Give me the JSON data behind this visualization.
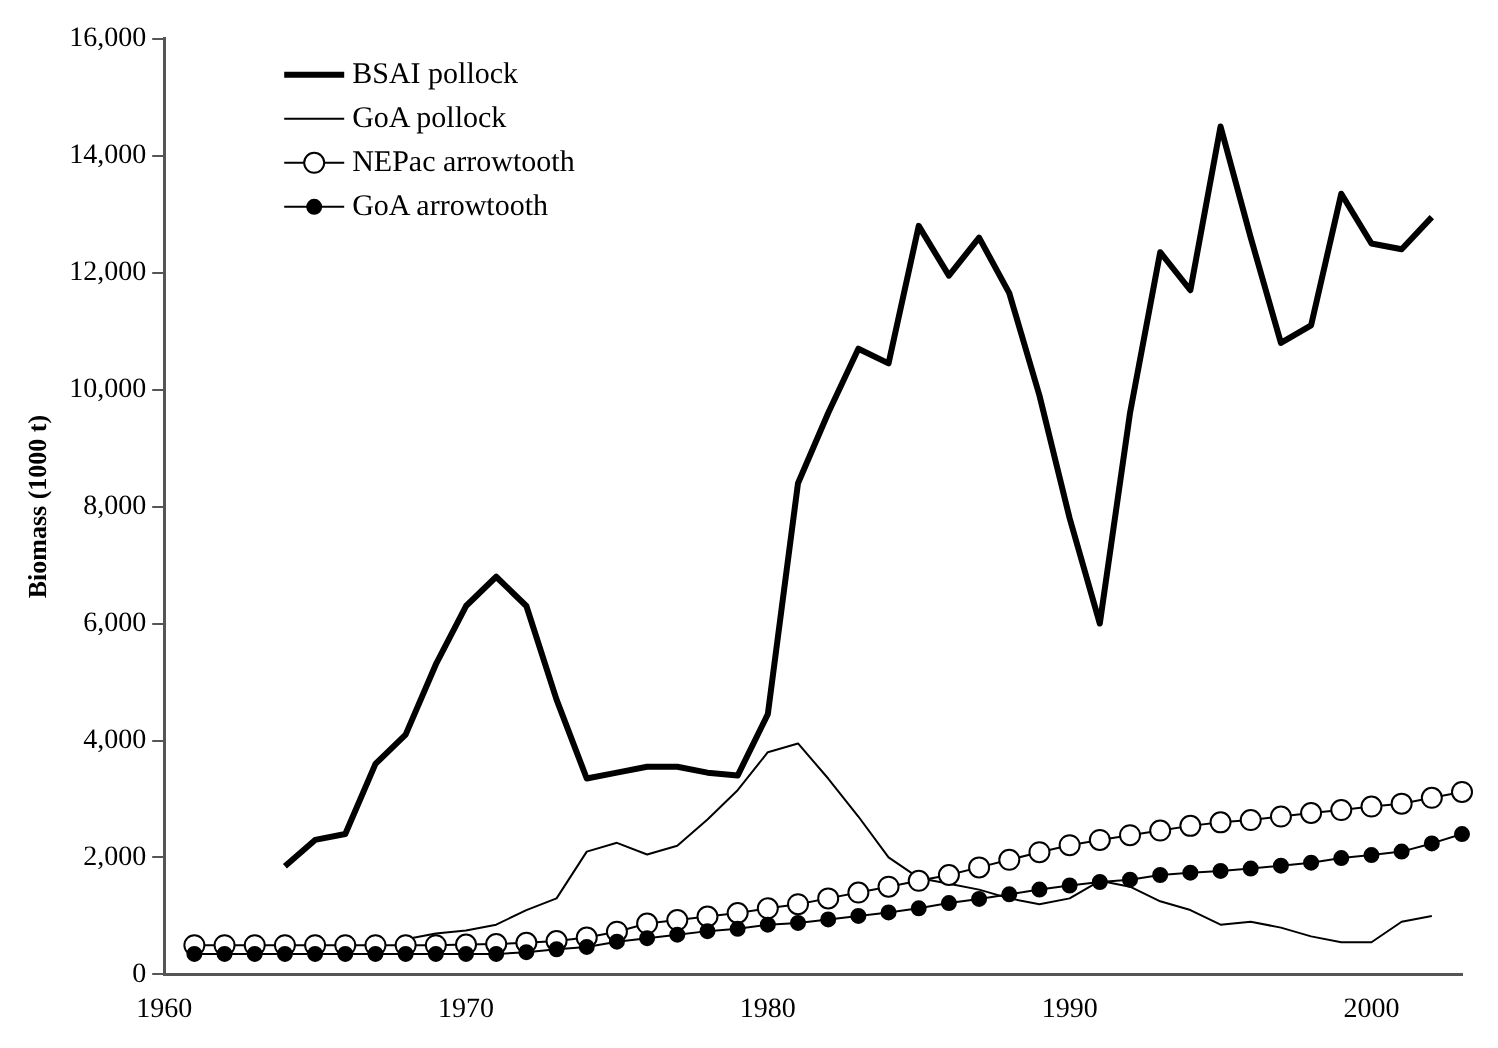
{
  "chart_data": {
    "type": "line",
    "ylabel": "Biomass (1000 t)",
    "xlim": [
      1960,
      2003
    ],
    "xticks": [
      1960,
      1970,
      1980,
      1990,
      2000
    ],
    "ylim": [
      0,
      16000
    ],
    "yticks": [
      {
        "value": 0,
        "label": "0"
      },
      {
        "value": 2000,
        "label": "2,000"
      },
      {
        "value": 4000,
        "label": "4,000"
      },
      {
        "value": 6000,
        "label": "6,000"
      },
      {
        "value": 8000,
        "label": "8,000"
      },
      {
        "value": 10000,
        "label": "10,000"
      },
      {
        "value": 12000,
        "label": "12,000"
      },
      {
        "value": 14000,
        "label": "14,000"
      },
      {
        "value": 16000,
        "label": "16,000"
      }
    ],
    "grid": false,
    "legend": "top left",
    "line_style": "solid",
    "series": [
      {
        "name": "BSAI pollock",
        "color": "#000000",
        "marker": "none",
        "x": [
          1964,
          1965,
          1966,
          1967,
          1968,
          1969,
          1970,
          1971,
          1972,
          1973,
          1974,
          1975,
          1976,
          1977,
          1978,
          1979,
          1980,
          1981,
          1982,
          1983,
          1984,
          1985,
          1986,
          1987,
          1988,
          1989,
          1990,
          1991,
          1992,
          1993,
          1994,
          1995,
          1996,
          1997,
          1998,
          1999,
          2000,
          2001,
          2002
        ],
        "values": [
          1850,
          2300,
          2400,
          3600,
          4100,
          5300,
          6300,
          6800,
          6300,
          4700,
          3350,
          3450,
          3550,
          3550,
          3450,
          3400,
          4450,
          8400,
          9600,
          10700,
          10450,
          12800,
          11950,
          12600,
          11650,
          9900,
          7800,
          6000,
          9600,
          12350,
          11700,
          14500,
          12600,
          10800,
          11100,
          13350,
          12500,
          12400,
          12950
        ]
      },
      {
        "name": "GoA pollock",
        "color": "#000000",
        "marker": "none",
        "x": [
          1968,
          1969,
          1970,
          1971,
          1972,
          1973,
          1974,
          1975,
          1976,
          1977,
          1978,
          1979,
          1980,
          1981,
          1982,
          1983,
          1984,
          1985,
          1986,
          1987,
          1988,
          1989,
          1990,
          1991,
          1992,
          1993,
          1994,
          1995,
          1996,
          1997,
          1998,
          1999,
          2000,
          2001,
          2002
        ],
        "values": [
          600,
          700,
          750,
          850,
          1100,
          1300,
          2100,
          2250,
          2050,
          2200,
          2650,
          3150,
          3800,
          3950,
          3350,
          2700,
          2000,
          1650,
          1550,
          1450,
          1300,
          1200,
          1300,
          1600,
          1500,
          1250,
          1100,
          850,
          900,
          800,
          650,
          550,
          550,
          900,
          1000
        ]
      },
      {
        "name": "NEPac arrowtooth",
        "color": "#000000",
        "marker": "circle",
        "x": [
          1961,
          1962,
          1963,
          1964,
          1965,
          1966,
          1967,
          1968,
          1969,
          1970,
          1971,
          1972,
          1973,
          1974,
          1975,
          1976,
          1977,
          1978,
          1979,
          1980,
          1981,
          1982,
          1983,
          1984,
          1985,
          1986,
          1987,
          1988,
          1989,
          1990,
          1991,
          1992,
          1993,
          1994,
          1995,
          1996,
          1997,
          1998,
          1999,
          2000,
          2001,
          2002,
          2003
        ],
        "values": [
          500,
          500,
          500,
          500,
          500,
          500,
          500,
          500,
          500,
          510,
          520,
          540,
          570,
          630,
          730,
          870,
          930,
          990,
          1050,
          1130,
          1200,
          1300,
          1400,
          1500,
          1600,
          1700,
          1830,
          1960,
          2090,
          2210,
          2300,
          2380,
          2460,
          2540,
          2600,
          2640,
          2700,
          2760,
          2810,
          2870,
          2920,
          3020,
          3120
        ]
      },
      {
        "name": "GoA arrowtooth",
        "color": "#000000",
        "marker": "circle",
        "x": [
          1961,
          1962,
          1963,
          1964,
          1965,
          1966,
          1967,
          1968,
          1969,
          1970,
          1971,
          1972,
          1973,
          1974,
          1975,
          1976,
          1977,
          1978,
          1979,
          1980,
          1981,
          1982,
          1983,
          1984,
          1985,
          1986,
          1987,
          1988,
          1989,
          1990,
          1991,
          1992,
          1993,
          1994,
          1995,
          1996,
          1997,
          1998,
          1999,
          2000,
          2001,
          2002,
          2003
        ],
        "values": [
          350,
          350,
          350,
          350,
          350,
          350,
          350,
          350,
          350,
          350,
          350,
          380,
          430,
          470,
          560,
          620,
          680,
          740,
          780,
          850,
          880,
          940,
          1000,
          1060,
          1130,
          1220,
          1290,
          1370,
          1450,
          1520,
          1580,
          1620,
          1700,
          1740,
          1770,
          1810,
          1860,
          1910,
          1990,
          2040,
          2100,
          2240,
          2400
        ]
      }
    ]
  }
}
